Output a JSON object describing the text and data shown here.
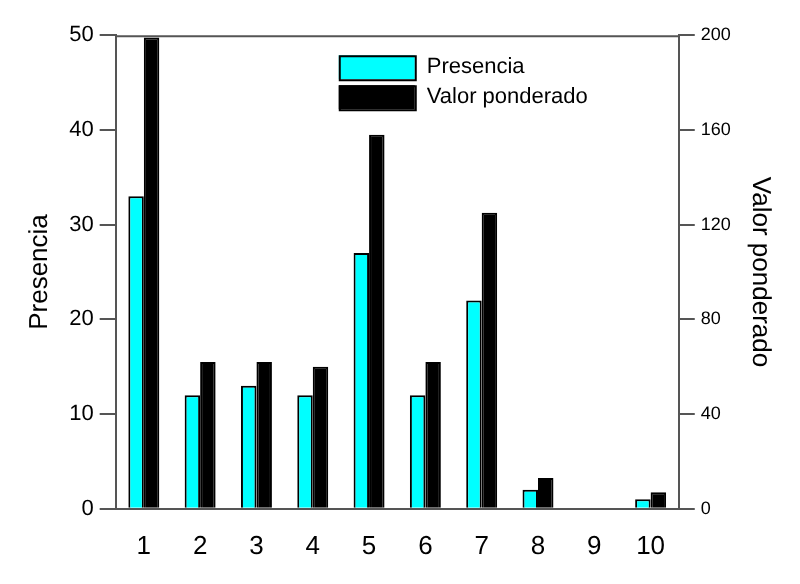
{
  "chart_data": {
    "type": "bar",
    "categories": [
      "1",
      "2",
      "3",
      "4",
      "5",
      "6",
      "7",
      "8",
      "9",
      "10"
    ],
    "series": [
      {
        "name": "Presencia",
        "color": "#00ffff",
        "values": [
          33,
          12,
          13,
          12,
          27,
          12,
          22,
          2,
          0,
          1
        ]
      },
      {
        "name": "Valor ponderado",
        "color": "#000000",
        "axis": "y2",
        "values": [
          199,
          62,
          62,
          60,
          158,
          62,
          125,
          13,
          0,
          7
        ]
      }
    ],
    "ylabel": "Presencia",
    "y2label": "Valor ponderado",
    "ylim": [
      0,
      50
    ],
    "yticks": [
      0,
      10,
      20,
      30,
      40,
      50
    ],
    "y2lim": [
      0,
      200
    ],
    "y2ticks": [
      0,
      40,
      80,
      120,
      160,
      200
    ],
    "grid": false,
    "legend": "top right"
  }
}
